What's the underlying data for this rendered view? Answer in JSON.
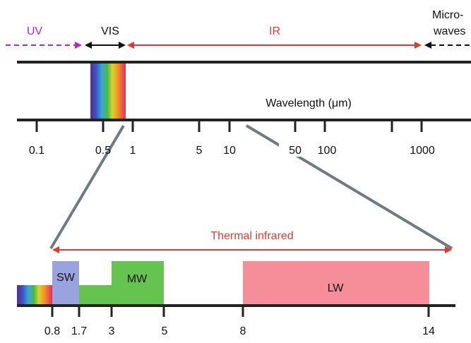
{
  "bands": {
    "uv": "UV",
    "vis": "VIS",
    "ir": "IR",
    "microwaves_line1": "Micro-",
    "microwaves_line2": "waves"
  },
  "axis": {
    "label": "Wavelength (μm)",
    "ticks": [
      "0.1",
      "0.5",
      "1",
      "5",
      "10",
      "50",
      "100",
      "1000"
    ]
  },
  "thermal": {
    "label": "Thermal infrared",
    "sw": "SW",
    "mw": "MW",
    "lw": "LW",
    "ticks": [
      "0.8",
      "1.7",
      "3",
      "5",
      "8",
      "14"
    ]
  },
  "colors": {
    "uv": "#b02ac0",
    "ir": "#e23a33",
    "sw": "#9aa3dd",
    "mw": "#65c350",
    "lw": "#f58e98",
    "connector": "#6f7b7e"
  }
}
